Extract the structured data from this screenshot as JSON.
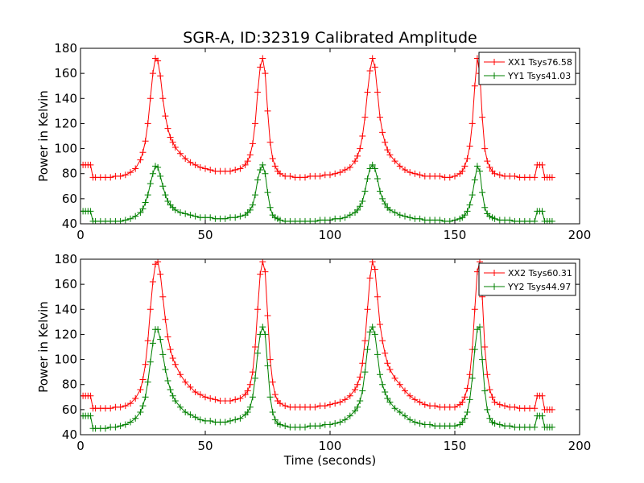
{
  "figure": {
    "title": "SGR-A, ID:32319 Calibrated Amplitude"
  },
  "chart_data": [
    {
      "type": "line",
      "xlim": [
        0,
        200
      ],
      "ylim": [
        40,
        180
      ],
      "xticks": [
        "0",
        "50",
        "100",
        "150",
        "200"
      ],
      "yticks": [
        "40",
        "60",
        "80",
        "100",
        "120",
        "140",
        "160",
        "180"
      ],
      "xlabel": "",
      "ylabel": "Power in Kelvin",
      "legend_position": "top-right",
      "marker": "+",
      "series": [
        {
          "name": "XX1 Tsys76.58",
          "color": "#ff0000",
          "x": [
            0,
            1,
            2,
            3,
            4,
            5,
            6,
            8,
            10,
            12,
            14,
            16,
            18,
            20,
            22,
            24,
            25,
            26,
            27,
            28,
            29,
            30,
            31,
            32,
            33,
            34,
            35,
            36,
            37,
            38,
            40,
            42,
            44,
            46,
            48,
            50,
            52,
            54,
            56,
            58,
            60,
            62,
            64,
            66,
            67,
            68,
            69,
            70,
            71,
            72,
            73,
            74,
            75,
            76,
            77,
            78,
            79,
            80,
            82,
            84,
            86,
            88,
            90,
            92,
            94,
            96,
            98,
            100,
            102,
            104,
            106,
            108,
            110,
            111,
            112,
            113,
            114,
            115,
            116,
            117,
            118,
            119,
            120,
            121,
            122,
            123,
            124,
            126,
            128,
            130,
            132,
            134,
            136,
            138,
            140,
            142,
            144,
            146,
            148,
            150,
            152,
            153,
            154,
            155,
            156,
            157,
            158,
            159,
            160,
            161,
            162,
            163,
            164,
            165,
            166,
            168,
            170,
            172,
            174,
            176,
            178,
            180,
            182,
            183,
            184,
            185,
            186,
            187,
            188,
            189
          ],
          "y": [
            87,
            87,
            87,
            87,
            87,
            77,
            77,
            77,
            77,
            77,
            78,
            78,
            79,
            81,
            84,
            91,
            97,
            106,
            120,
            140,
            160,
            172,
            170,
            158,
            140,
            126,
            116,
            109,
            105,
            101,
            96,
            92,
            89,
            87,
            85,
            84,
            83,
            82,
            82,
            82,
            82,
            83,
            84,
            87,
            90,
            95,
            104,
            120,
            145,
            165,
            172,
            160,
            130,
            105,
            92,
            86,
            82,
            80,
            78,
            78,
            77,
            77,
            77,
            78,
            78,
            78,
            79,
            79,
            80,
            81,
            83,
            85,
            90,
            94,
            100,
            110,
            125,
            145,
            162,
            172,
            165,
            145,
            125,
            113,
            105,
            99,
            95,
            90,
            86,
            83,
            81,
            80,
            79,
            78,
            78,
            78,
            78,
            77,
            77,
            78,
            80,
            82,
            86,
            92,
            102,
            120,
            150,
            172,
            160,
            125,
            100,
            90,
            85,
            82,
            80,
            79,
            78,
            78,
            78,
            77,
            77,
            77,
            77,
            87,
            87,
            87,
            77,
            77,
            77,
            77
          ]
        },
        {
          "name": "YY1 Tsys41.03",
          "color": "#008000",
          "x": [
            0,
            1,
            2,
            3,
            4,
            5,
            6,
            8,
            10,
            12,
            14,
            16,
            18,
            20,
            22,
            24,
            25,
            26,
            27,
            28,
            29,
            30,
            31,
            32,
            33,
            34,
            35,
            36,
            37,
            38,
            40,
            42,
            44,
            46,
            48,
            50,
            52,
            54,
            56,
            58,
            60,
            62,
            64,
            66,
            67,
            68,
            69,
            70,
            71,
            72,
            73,
            74,
            75,
            76,
            77,
            78,
            79,
            80,
            82,
            84,
            86,
            88,
            90,
            92,
            94,
            96,
            98,
            100,
            102,
            104,
            106,
            108,
            110,
            111,
            112,
            113,
            114,
            115,
            116,
            117,
            118,
            119,
            120,
            121,
            122,
            123,
            124,
            126,
            128,
            130,
            132,
            134,
            136,
            138,
            140,
            142,
            144,
            146,
            148,
            150,
            152,
            153,
            154,
            155,
            156,
            157,
            158,
            159,
            160,
            161,
            162,
            163,
            164,
            165,
            166,
            168,
            170,
            172,
            174,
            176,
            178,
            180,
            182,
            183,
            184,
            185,
            186,
            187,
            188,
            189
          ],
          "y": [
            50,
            50,
            50,
            50,
            50,
            42,
            42,
            42,
            42,
            42,
            42,
            42,
            43,
            44,
            46,
            49,
            52,
            57,
            63,
            72,
            80,
            86,
            85,
            78,
            70,
            63,
            58,
            55,
            53,
            51,
            49,
            48,
            47,
            46,
            45,
            45,
            45,
            44,
            44,
            44,
            45,
            45,
            46,
            47,
            49,
            51,
            55,
            63,
            75,
            83,
            87,
            80,
            65,
            53,
            47,
            45,
            44,
            43,
            42,
            42,
            42,
            42,
            42,
            42,
            42,
            43,
            43,
            43,
            44,
            44,
            45,
            47,
            49,
            51,
            54,
            58,
            66,
            76,
            84,
            87,
            84,
            76,
            66,
            60,
            56,
            53,
            51,
            49,
            47,
            46,
            45,
            44,
            44,
            43,
            43,
            43,
            43,
            42,
            42,
            43,
            44,
            45,
            47,
            50,
            55,
            63,
            75,
            86,
            82,
            65,
            53,
            48,
            46,
            45,
            44,
            43,
            43,
            43,
            42,
            42,
            42,
            42,
            42,
            50,
            50,
            50,
            42,
            42,
            42,
            42
          ]
        }
      ]
    },
    {
      "type": "line",
      "xlim": [
        0,
        200
      ],
      "ylim": [
        40,
        180
      ],
      "xticks": [
        "0",
        "50",
        "100",
        "150",
        "200"
      ],
      "yticks": [
        "40",
        "60",
        "80",
        "100",
        "120",
        "140",
        "160",
        "180"
      ],
      "xlabel": "Time (seconds)",
      "ylabel": "Power in Kelvin",
      "legend_position": "top-right",
      "marker": "+",
      "series": [
        {
          "name": "XX2 Tsys60.31",
          "color": "#ff0000",
          "x": [
            0,
            1,
            2,
            3,
            4,
            5,
            6,
            8,
            10,
            12,
            14,
            16,
            18,
            20,
            22,
            24,
            25,
            26,
            27,
            28,
            29,
            30,
            31,
            32,
            33,
            34,
            35,
            36,
            37,
            38,
            40,
            42,
            44,
            46,
            48,
            50,
            52,
            54,
            56,
            58,
            60,
            62,
            64,
            66,
            67,
            68,
            69,
            70,
            71,
            72,
            73,
            74,
            75,
            76,
            77,
            78,
            79,
            80,
            82,
            84,
            86,
            88,
            90,
            92,
            94,
            96,
            98,
            100,
            102,
            104,
            106,
            108,
            110,
            111,
            112,
            113,
            114,
            115,
            116,
            117,
            118,
            119,
            120,
            121,
            122,
            123,
            124,
            126,
            128,
            130,
            132,
            134,
            136,
            138,
            140,
            142,
            144,
            146,
            148,
            150,
            152,
            153,
            154,
            155,
            156,
            157,
            158,
            159,
            160,
            161,
            162,
            163,
            164,
            165,
            166,
            168,
            170,
            172,
            174,
            176,
            178,
            180,
            182,
            183,
            184,
            185,
            186,
            187,
            188,
            189
          ],
          "y": [
            71,
            71,
            71,
            71,
            71,
            61,
            61,
            61,
            61,
            61,
            62,
            62,
            63,
            65,
            69,
            76,
            84,
            96,
            115,
            140,
            162,
            176,
            178,
            168,
            150,
            132,
            118,
            108,
            101,
            96,
            88,
            82,
            78,
            74,
            72,
            70,
            69,
            68,
            67,
            67,
            67,
            68,
            69,
            72,
            75,
            80,
            90,
            110,
            140,
            168,
            178,
            170,
            135,
            100,
            82,
            72,
            67,
            65,
            63,
            62,
            62,
            62,
            62,
            62,
            62,
            63,
            63,
            64,
            65,
            66,
            68,
            71,
            76,
            80,
            86,
            97,
            115,
            140,
            165,
            178,
            172,
            150,
            128,
            115,
            105,
            97,
            92,
            85,
            80,
            75,
            71,
            68,
            66,
            64,
            63,
            63,
            62,
            62,
            62,
            62,
            64,
            66,
            70,
            77,
            88,
            108,
            140,
            170,
            178,
            150,
            110,
            88,
            76,
            70,
            66,
            64,
            63,
            62,
            62,
            61,
            61,
            61,
            61,
            71,
            71,
            71,
            60,
            60,
            60,
            60
          ]
        },
        {
          "name": "YY2 Tsys44.97",
          "color": "#008000",
          "x": [
            0,
            1,
            2,
            3,
            4,
            5,
            6,
            8,
            10,
            12,
            14,
            16,
            18,
            20,
            22,
            24,
            25,
            26,
            27,
            28,
            29,
            30,
            31,
            32,
            33,
            34,
            35,
            36,
            37,
            38,
            40,
            42,
            44,
            46,
            48,
            50,
            52,
            54,
            56,
            58,
            60,
            62,
            64,
            66,
            67,
            68,
            69,
            70,
            71,
            72,
            73,
            74,
            75,
            76,
            77,
            78,
            79,
            80,
            82,
            84,
            86,
            88,
            90,
            92,
            94,
            96,
            98,
            100,
            102,
            104,
            106,
            108,
            110,
            111,
            112,
            113,
            114,
            115,
            116,
            117,
            118,
            119,
            120,
            121,
            122,
            123,
            124,
            126,
            128,
            130,
            132,
            134,
            136,
            138,
            140,
            142,
            144,
            146,
            148,
            150,
            152,
            153,
            154,
            155,
            156,
            157,
            158,
            159,
            160,
            161,
            162,
            163,
            164,
            165,
            166,
            168,
            170,
            172,
            174,
            176,
            178,
            180,
            182,
            183,
            184,
            185,
            186,
            187,
            188,
            189
          ],
          "y": [
            55,
            55,
            55,
            55,
            55,
            45,
            45,
            45,
            45,
            46,
            46,
            47,
            48,
            50,
            53,
            58,
            63,
            70,
            82,
            98,
            113,
            124,
            124,
            116,
            104,
            92,
            83,
            76,
            71,
            67,
            62,
            58,
            56,
            54,
            52,
            51,
            51,
            50,
            50,
            50,
            51,
            52,
            53,
            56,
            58,
            62,
            70,
            85,
            105,
            120,
            126,
            120,
            95,
            70,
            58,
            52,
            49,
            48,
            47,
            46,
            46,
            46,
            46,
            47,
            47,
            47,
            48,
            48,
            49,
            50,
            52,
            55,
            59,
            62,
            67,
            75,
            90,
            108,
            122,
            126,
            120,
            104,
            88,
            80,
            74,
            69,
            66,
            61,
            58,
            55,
            52,
            50,
            49,
            48,
            48,
            47,
            47,
            47,
            47,
            47,
            48,
            50,
            53,
            58,
            68,
            85,
            108,
            124,
            126,
            100,
            75,
            60,
            53,
            50,
            49,
            48,
            47,
            47,
            46,
            46,
            46,
            46,
            46,
            55,
            55,
            55,
            46,
            46,
            46,
            46
          ]
        }
      ]
    }
  ]
}
